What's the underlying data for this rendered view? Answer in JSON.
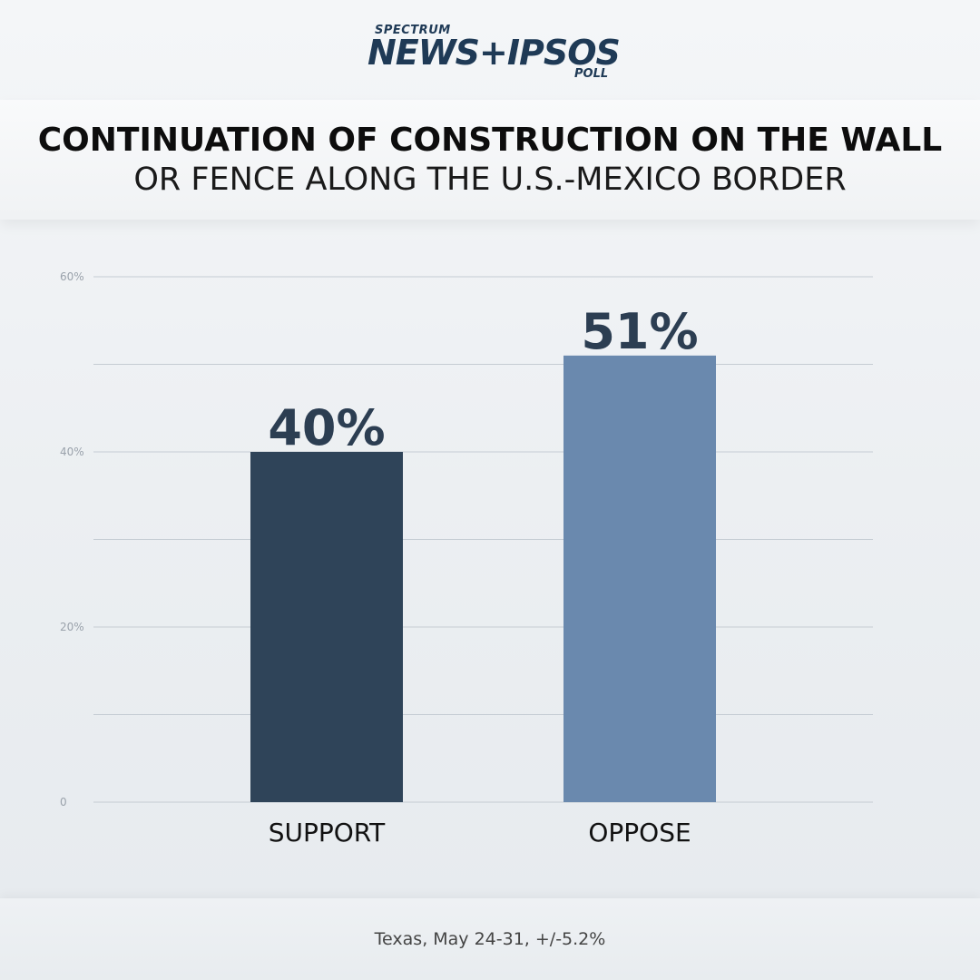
{
  "logo": {
    "small": "SPECTRUM",
    "main": "NEWS+IPSOS",
    "poll": "POLL"
  },
  "title": {
    "line1": "CONTINUATION OF CONSTRUCTION ON THE WALL",
    "line2": "OR FENCE ALONG THE U.S.-MEXICO BORDER"
  },
  "chart_data": {
    "type": "bar",
    "categories": [
      "SUPPORT",
      "OPPOSE"
    ],
    "values": [
      40,
      51
    ],
    "data_labels": [
      "40%",
      "51%"
    ],
    "colors": [
      "#2f4459",
      "#6a89ae"
    ],
    "ylim": [
      0,
      60
    ],
    "y_ticks": [
      {
        "value": 0,
        "label": "0"
      },
      {
        "value": 20,
        "label": "20%"
      },
      {
        "value": 40,
        "label": "40%"
      },
      {
        "value": 60,
        "label": "60%"
      }
    ],
    "gridlines": [
      0,
      10,
      20,
      30,
      40,
      50,
      60
    ],
    "grid": true,
    "title": "CONTINUATION OF CONSTRUCTION ON THE WALL OR FENCE ALONG THE U.S.-MEXICO BORDER"
  },
  "footnote": "Texas, May 24-31, +/-5.2%"
}
